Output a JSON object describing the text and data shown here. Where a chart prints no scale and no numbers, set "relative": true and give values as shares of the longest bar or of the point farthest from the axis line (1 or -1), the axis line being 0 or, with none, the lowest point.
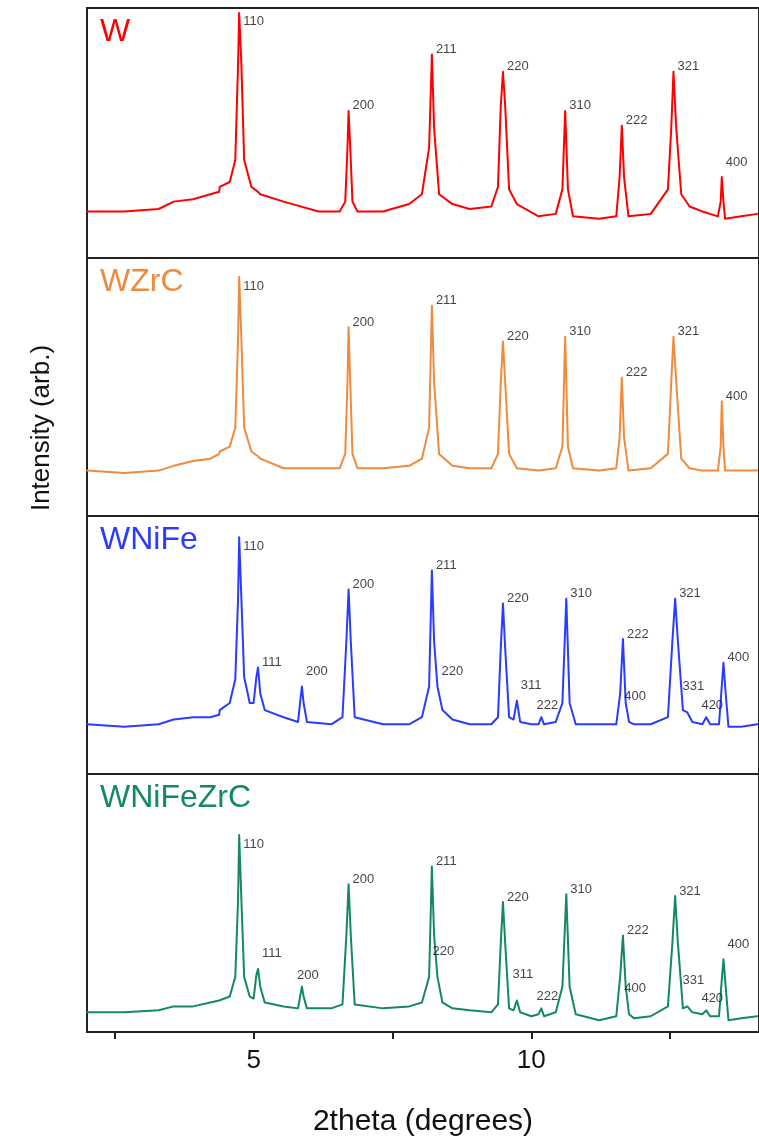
{
  "chart_data": [
    {
      "type": "line",
      "relative": true,
      "xlim": [
        2,
        14.1
      ],
      "tick_labels": false,
      "grid": false,
      "legend": false,
      "marker": "none",
      "line_style": "solid",
      "series": [
        {
          "name": "W",
          "color": "#ff0000",
          "x": [
            2.0,
            2.67,
            3.29,
            3.56,
            3.91,
            4.22,
            4.38,
            4.39,
            4.57,
            4.67,
            4.72,
            4.74,
            4.78,
            4.83,
            4.96,
            5.08,
            5.12,
            5.54,
            6.17,
            6.55,
            6.65,
            6.69,
            6.71,
            6.74,
            6.78,
            6.87,
            7.33,
            7.8,
            8.03,
            8.16,
            8.21,
            8.25,
            8.34,
            8.58,
            8.89,
            9.28,
            9.4,
            9.45,
            9.49,
            9.53,
            9.6,
            9.74,
            10.13,
            10.44,
            10.56,
            10.61,
            10.66,
            10.75,
            11.22,
            11.53,
            11.59,
            11.63,
            11.67,
            11.75,
            12.15,
            12.46,
            12.52,
            12.56,
            12.61,
            12.7,
            12.85,
            13.08,
            13.36,
            13.41,
            13.43,
            13.46,
            13.49,
            13.78,
            14.07
          ],
          "values": [
            0.19,
            0.19,
            0.2,
            0.23,
            0.24,
            0.26,
            0.27,
            0.29,
            0.31,
            0.4,
            0.79,
            1,
            0.79,
            0.4,
            0.29,
            0.27,
            0.26,
            0.23,
            0.19,
            0.19,
            0.23,
            0.45,
            0.6,
            0.45,
            0.23,
            0.19,
            0.19,
            0.22,
            0.26,
            0.45,
            0.83,
            0.53,
            0.26,
            0.22,
            0.2,
            0.21,
            0.29,
            0.62,
            0.76,
            0.62,
            0.28,
            0.22,
            0.17,
            0.18,
            0.28,
            0.6,
            0.28,
            0.17,
            0.16,
            0.17,
            0.33,
            0.54,
            0.33,
            0.17,
            0.18,
            0.28,
            0.53,
            0.76,
            0.53,
            0.26,
            0.21,
            0.19,
            0.17,
            0.23,
            0.33,
            0.23,
            0.16,
            0.17,
            0.18
          ]
        }
      ],
      "annotations": [
        {
          "text": "110",
          "x": 4.74,
          "y": 1
        },
        {
          "text": "200",
          "x": 6.71,
          "y": 0.6
        },
        {
          "text": "211",
          "x": 8.21,
          "y": 0.83
        },
        {
          "text": "220",
          "x": 9.49,
          "y": 0.76
        },
        {
          "text": "310",
          "x": 10.61,
          "y": 0.6
        },
        {
          "text": "222",
          "x": 11.63,
          "y": 0.54
        },
        {
          "text": "321",
          "x": 12.56,
          "y": 0.76
        },
        {
          "text": "400",
          "x": 13.43,
          "y": 0.33
        }
      ]
    },
    {
      "type": "line",
      "relative": true,
      "ylabel": "Intensity (arb.)",
      "xlim": [
        2,
        14.1
      ],
      "tick_labels": false,
      "grid": false,
      "legend": false,
      "marker": "none",
      "line_style": "solid",
      "series": [
        {
          "name": "WZrC",
          "color": "#f08a3c",
          "x": [
            2.0,
            2.67,
            3.29,
            3.56,
            3.91,
            4.22,
            4.38,
            4.39,
            4.57,
            4.67,
            4.72,
            4.74,
            4.78,
            4.83,
            4.96,
            5.08,
            5.12,
            5.54,
            6.17,
            6.55,
            6.65,
            6.69,
            6.71,
            6.74,
            6.78,
            6.87,
            7.33,
            7.8,
            8.03,
            8.16,
            8.21,
            8.25,
            8.34,
            8.58,
            8.89,
            9.28,
            9.4,
            9.45,
            9.49,
            9.53,
            9.6,
            9.74,
            10.13,
            10.44,
            10.56,
            10.61,
            10.66,
            10.75,
            11.22,
            11.53,
            11.59,
            11.63,
            11.67,
            11.75,
            12.15,
            12.46,
            12.52,
            12.56,
            12.61,
            12.7,
            12.85,
            13.08,
            13.36,
            13.41,
            13.43,
            13.46,
            13.49,
            13.78,
            14.07
          ],
          "values": [
            0.19,
            0.18,
            0.19,
            0.21,
            0.23,
            0.24,
            0.26,
            0.27,
            0.29,
            0.37,
            0.74,
            1,
            0.74,
            0.37,
            0.27,
            0.25,
            0.24,
            0.2,
            0.2,
            0.2,
            0.26,
            0.56,
            0.79,
            0.56,
            0.26,
            0.2,
            0.2,
            0.21,
            0.24,
            0.37,
            0.88,
            0.56,
            0.26,
            0.21,
            0.2,
            0.2,
            0.26,
            0.56,
            0.73,
            0.56,
            0.26,
            0.2,
            0.19,
            0.2,
            0.29,
            0.75,
            0.29,
            0.2,
            0.19,
            0.2,
            0.33,
            0.58,
            0.33,
            0.19,
            0.2,
            0.26,
            0.56,
            0.75,
            0.56,
            0.24,
            0.2,
            0.19,
            0.19,
            0.29,
            0.48,
            0.29,
            0.19,
            0.19,
            0.19
          ]
        }
      ],
      "annotations": [
        {
          "text": "110",
          "x": 4.74,
          "y": 1
        },
        {
          "text": "200",
          "x": 6.71,
          "y": 0.79
        },
        {
          "text": "211",
          "x": 8.21,
          "y": 0.88
        },
        {
          "text": "220",
          "x": 9.49,
          "y": 0.73
        },
        {
          "text": "310",
          "x": 10.61,
          "y": 0.75
        },
        {
          "text": "222",
          "x": 11.63,
          "y": 0.58
        },
        {
          "text": "321",
          "x": 12.56,
          "y": 0.75
        },
        {
          "text": "400",
          "x": 13.43,
          "y": 0.48
        }
      ]
    },
    {
      "type": "line",
      "relative": true,
      "xlim": [
        2,
        14.1
      ],
      "tick_labels": false,
      "grid": false,
      "legend": false,
      "marker": "none",
      "line_style": "solid",
      "series": [
        {
          "name": "WNiFe",
          "color": "#2a3cff",
          "x": [
            2.0,
            2.67,
            3.29,
            3.56,
            3.91,
            4.22,
            4.38,
            4.39,
            4.57,
            4.67,
            4.72,
            4.74,
            4.78,
            4.83,
            4.93,
            5.0,
            5.05,
            5.08,
            5.12,
            5.2,
            5.54,
            5.8,
            5.85,
            5.87,
            5.9,
            5.96,
            6.4,
            6.6,
            6.67,
            6.71,
            6.75,
            6.82,
            7.33,
            7.8,
            8.03,
            8.16,
            8.21,
            8.25,
            8.31,
            8.4,
            8.58,
            8.89,
            9.28,
            9.4,
            9.45,
            9.49,
            9.53,
            9.6,
            9.68,
            9.74,
            9.8,
            10.0,
            10.13,
            10.18,
            10.23,
            10.44,
            10.56,
            10.63,
            10.69,
            10.8,
            11.22,
            11.53,
            11.6,
            11.65,
            11.7,
            11.76,
            11.85,
            12.15,
            12.46,
            12.54,
            12.59,
            12.64,
            12.73,
            12.81,
            12.9,
            13.08,
            13.15,
            13.22,
            13.38,
            13.42,
            13.46,
            13.5,
            13.55,
            13.78,
            14.07
          ],
          "values": [
            0.21,
            0.2,
            0.21,
            0.23,
            0.24,
            0.24,
            0.25,
            0.27,
            0.3,
            0.4,
            0.74,
            1,
            0.74,
            0.41,
            0.3,
            0.3,
            0.41,
            0.45,
            0.34,
            0.27,
            0.24,
            0.22,
            0.33,
            0.37,
            0.3,
            0.22,
            0.21,
            0.24,
            0.56,
            0.78,
            0.56,
            0.24,
            0.21,
            0.21,
            0.24,
            0.37,
            0.86,
            0.56,
            0.37,
            0.27,
            0.23,
            0.21,
            0.21,
            0.24,
            0.53,
            0.72,
            0.53,
            0.24,
            0.23,
            0.31,
            0.22,
            0.21,
            0.21,
            0.24,
            0.21,
            0.22,
            0.3,
            0.74,
            0.3,
            0.21,
            0.21,
            0.21,
            0.34,
            0.57,
            0.3,
            0.22,
            0.21,
            0.21,
            0.24,
            0.56,
            0.74,
            0.56,
            0.27,
            0.26,
            0.22,
            0.21,
            0.24,
            0.21,
            0.21,
            0.34,
            0.47,
            0.34,
            0.2,
            0.2,
            0.21
          ]
        }
      ],
      "annotations": [
        {
          "text": "110",
          "x": 4.74,
          "y": 1
        },
        {
          "text": "111",
          "x": 5.08,
          "y": 0.45
        },
        {
          "text": "200",
          "x": 5.87,
          "y": 0.37
        },
        {
          "text": "200",
          "x": 6.71,
          "y": 0.78
        },
        {
          "text": "211",
          "x": 8.21,
          "y": 0.86
        },
        {
          "text": "220",
          "x": 8.31,
          "y": 0.37
        },
        {
          "text": "220",
          "x": 9.49,
          "y": 0.72
        },
        {
          "text": "311",
          "x": 9.74,
          "y": 0.31
        },
        {
          "text": "222",
          "x": 10.18,
          "y": 0.24
        },
        {
          "text": "310",
          "x": 10.63,
          "y": 0.74
        },
        {
          "text": "222",
          "x": 11.65,
          "y": 0.57
        },
        {
          "text": "400",
          "x": 11.76,
          "y": 0.22
        },
        {
          "text": "321",
          "x": 12.59,
          "y": 0.74
        },
        {
          "text": "331",
          "x": 12.81,
          "y": 0.26
        },
        {
          "text": "420",
          "x": 13.15,
          "y": 0.24
        },
        {
          "text": "400",
          "x": 13.46,
          "y": 0.47
        }
      ]
    },
    {
      "type": "line",
      "relative": true,
      "xlabel": "2theta (degrees)",
      "xlim": [
        2,
        14.1
      ],
      "xticks": [
        {
          "value": 2.5,
          "label": null
        },
        5,
        {
          "value": 7.5,
          "label": null
        },
        10,
        {
          "value": 12.5,
          "label": null
        }
      ],
      "tick_labels": "x",
      "grid": false,
      "legend": false,
      "marker": "none",
      "line_style": "solid",
      "series": [
        {
          "name": "WNiFeZrC",
          "color": "#138a5e",
          "x": [
            2.0,
            2.67,
            3.29,
            3.56,
            3.91,
            4.22,
            4.38,
            4.39,
            4.57,
            4.67,
            4.72,
            4.74,
            4.78,
            4.83,
            4.93,
            5.0,
            5.05,
            5.08,
            5.12,
            5.2,
            5.54,
            5.8,
            5.85,
            5.87,
            5.9,
            5.96,
            6.4,
            6.6,
            6.67,
            6.71,
            6.75,
            6.82,
            7.33,
            7.8,
            8.03,
            8.16,
            8.21,
            8.25,
            8.31,
            8.4,
            8.58,
            8.89,
            9.28,
            9.4,
            9.45,
            9.49,
            9.53,
            9.6,
            9.68,
            9.74,
            9.8,
            10.0,
            10.13,
            10.18,
            10.23,
            10.44,
            10.56,
            10.63,
            10.69,
            10.8,
            11.22,
            11.53,
            11.6,
            11.65,
            11.7,
            11.76,
            11.85,
            12.15,
            12.46,
            12.54,
            12.59,
            12.64,
            12.73,
            12.81,
            12.9,
            13.08,
            13.15,
            13.22,
            13.38,
            13.42,
            13.46,
            13.5,
            13.55,
            13.78,
            14.07
          ],
          "values": [
            0.1,
            0.1,
            0.11,
            0.13,
            0.13,
            0.15,
            0.16,
            0.16,
            0.18,
            0.28,
            0.67,
            1,
            0.67,
            0.28,
            0.18,
            0.17,
            0.29,
            0.32,
            0.23,
            0.15,
            0.13,
            0.12,
            0.2,
            0.23,
            0.18,
            0.12,
            0.12,
            0.14,
            0.49,
            0.75,
            0.49,
            0.14,
            0.12,
            0.13,
            0.15,
            0.28,
            0.84,
            0.49,
            0.28,
            0.15,
            0.12,
            0.11,
            0.1,
            0.14,
            0.45,
            0.66,
            0.45,
            0.12,
            0.11,
            0.16,
            0.1,
            0.08,
            0.09,
            0.12,
            0.08,
            0.1,
            0.23,
            0.7,
            0.23,
            0.09,
            0.06,
            0.08,
            0.28,
            0.49,
            0.23,
            0.09,
            0.07,
            0.08,
            0.13,
            0.45,
            0.69,
            0.45,
            0.12,
            0.13,
            0.1,
            0.09,
            0.11,
            0.08,
            0.08,
            0.23,
            0.37,
            0.23,
            0.06,
            0.07,
            0.08
          ]
        }
      ],
      "annotations": [
        {
          "text": "110",
          "x": 4.74,
          "y": 1
        },
        {
          "text": "111",
          "x": 5.08,
          "y": 0.32
        },
        {
          "text": "200",
          "x": 5.87,
          "y": 0.23
        },
        {
          "text": "200",
          "x": 6.71,
          "y": 0.75
        },
        {
          "text": "211",
          "x": 8.21,
          "y": 0.84
        },
        {
          "text": "220",
          "x": 8.31,
          "y": 0.28
        },
        {
          "text": "220",
          "x": 9.49,
          "y": 0.66
        },
        {
          "text": "311",
          "x": 9.74,
          "y": 0.16
        },
        {
          "text": "222",
          "x": 10.18,
          "y": 0.12
        },
        {
          "text": "310",
          "x": 10.63,
          "y": 0.7
        },
        {
          "text": "222",
          "x": 11.65,
          "y": 0.49
        },
        {
          "text": "400",
          "x": 11.76,
          "y": 0.09
        },
        {
          "text": "321",
          "x": 12.59,
          "y": 0.69
        },
        {
          "text": "331",
          "x": 12.81,
          "y": 0.13
        },
        {
          "text": "420",
          "x": 13.15,
          "y": 0.11
        },
        {
          "text": "400",
          "x": 13.46,
          "y": 0.37
        }
      ]
    }
  ]
}
